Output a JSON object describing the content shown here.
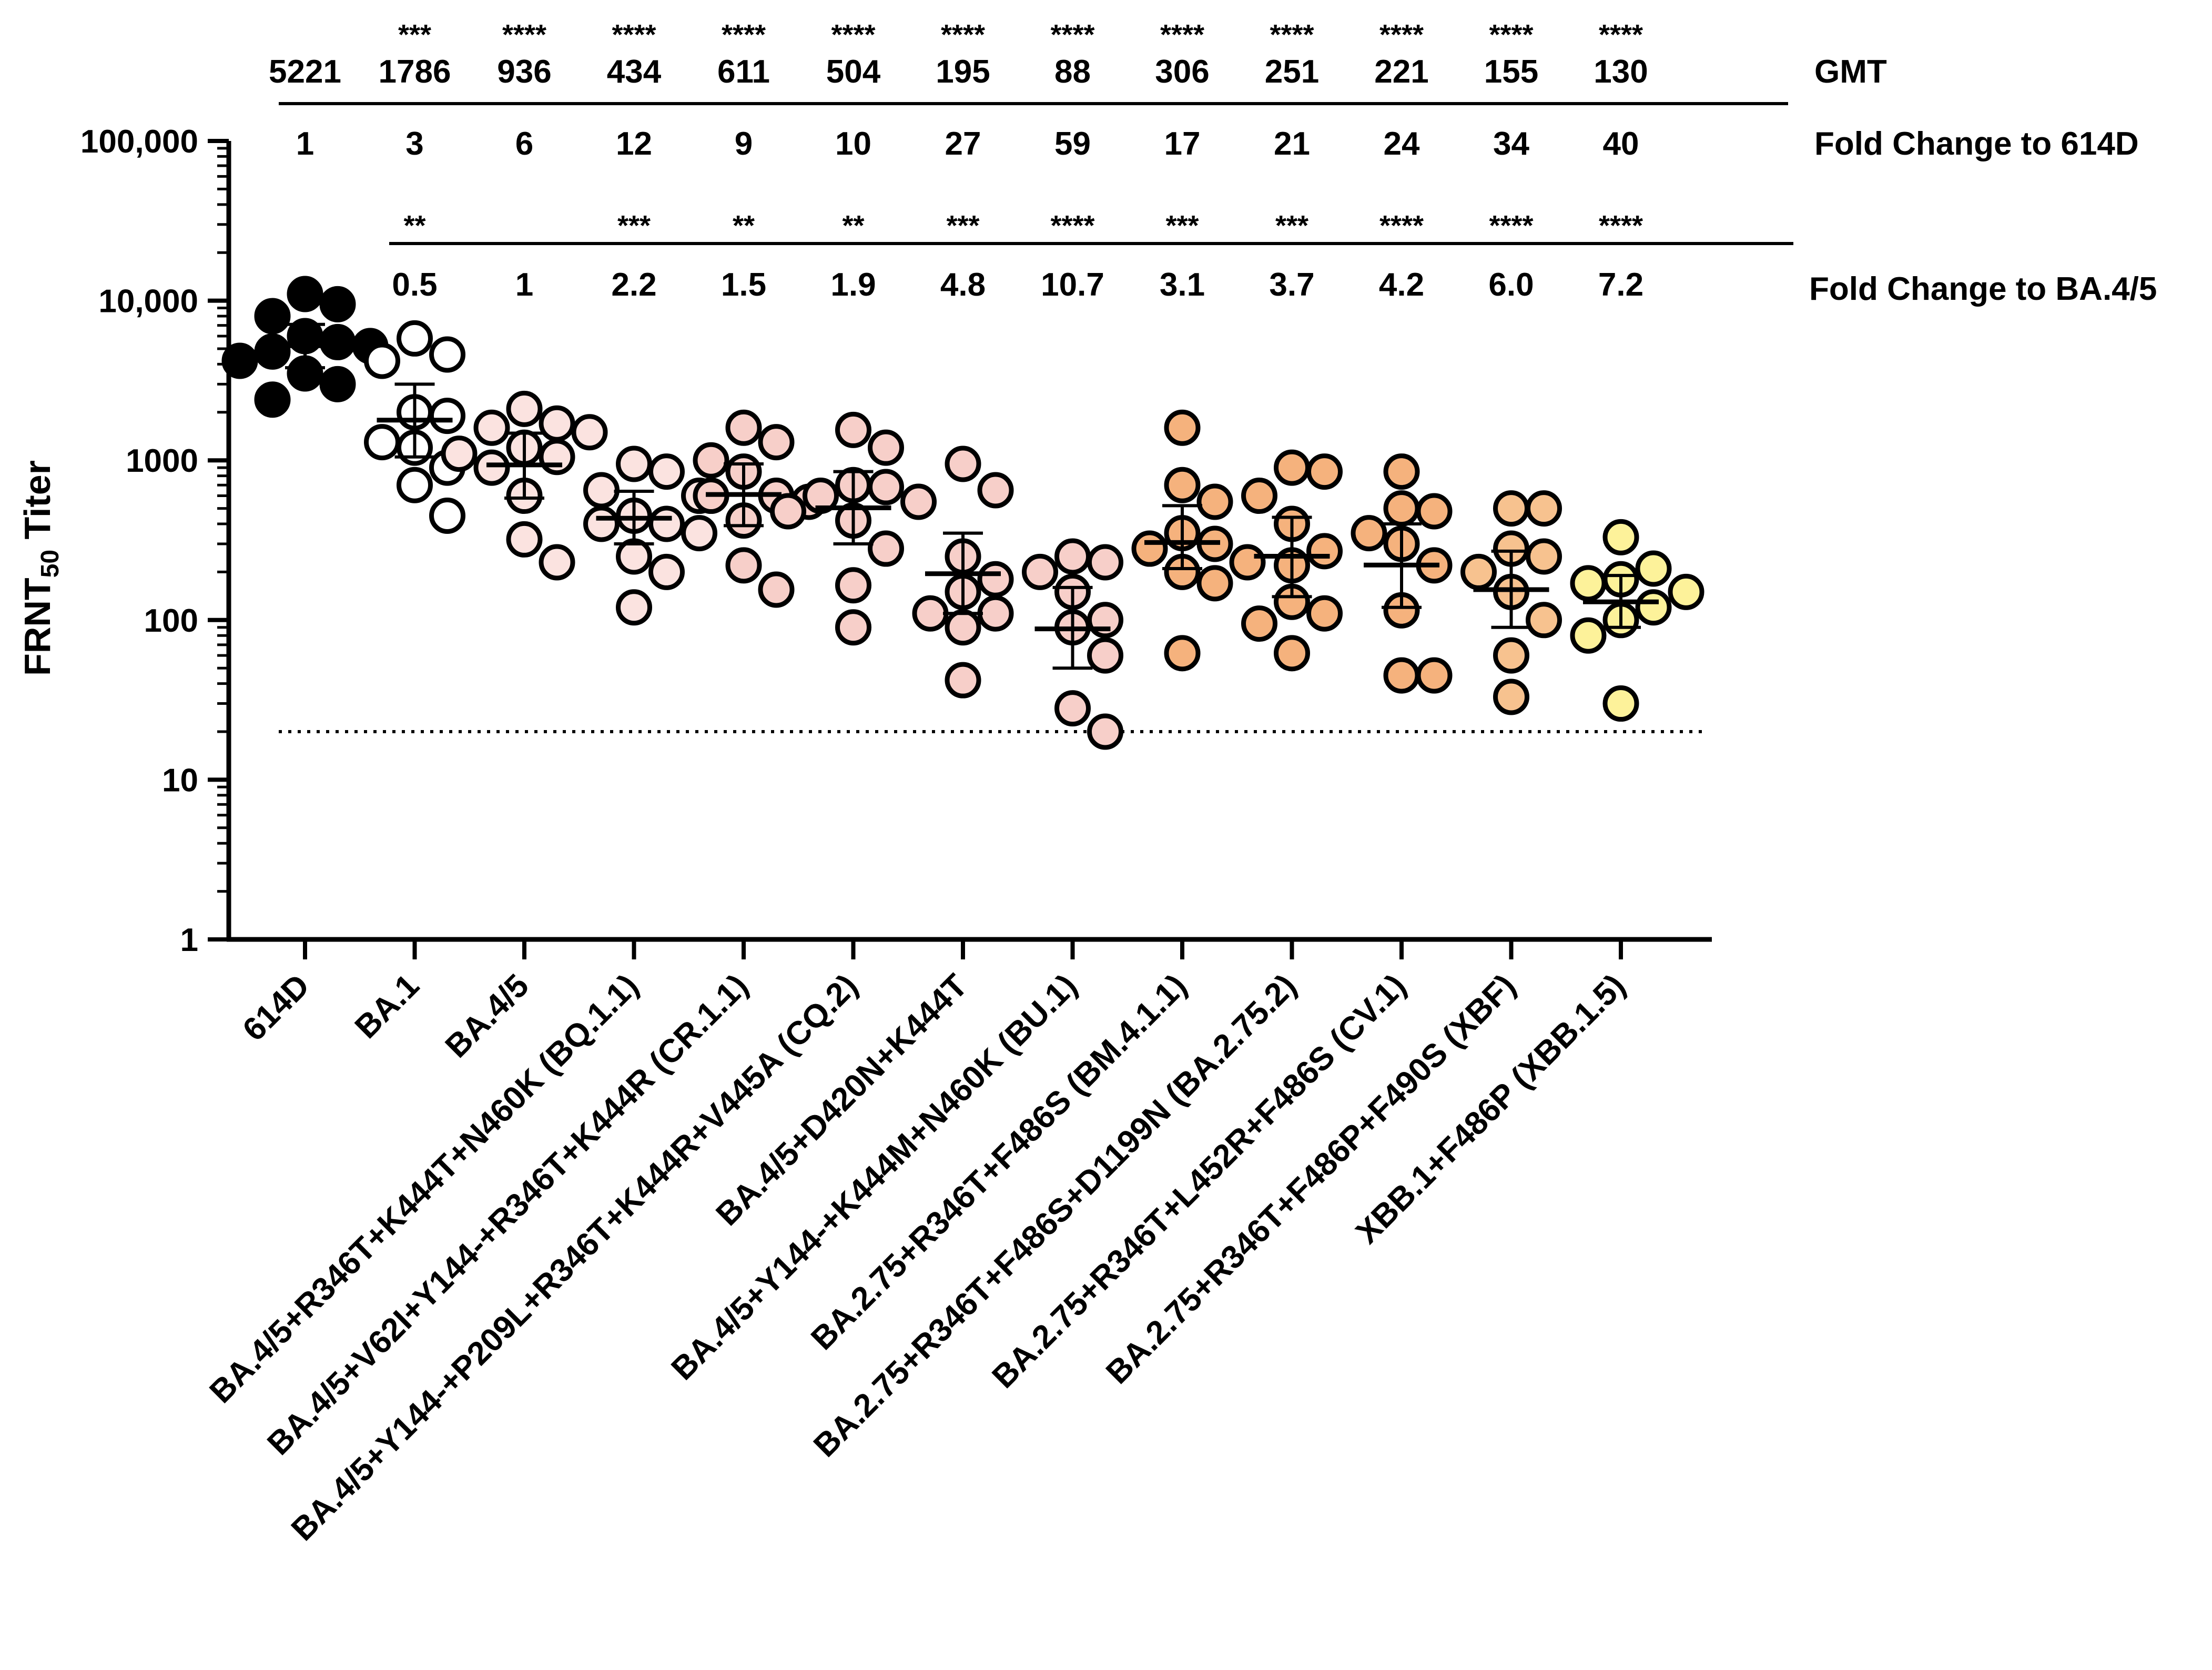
{
  "chart_data": {
    "type": "scatter",
    "scale": "log",
    "ylabel": "FRNT",
    "ylabel_subscript": "50",
    "ylabel_suffix": " Titer",
    "ylim": [
      1,
      100000
    ],
    "yticks": [
      1,
      10,
      100,
      1000,
      10000,
      100000
    ],
    "ytick_labels": [
      "1",
      "10",
      "100",
      "1000",
      "10,000",
      "100,000"
    ],
    "limit_of_detection": 20,
    "categories": [
      "614D",
      "BA.1",
      "BA.4/5",
      "BA.4/5+R346T+K444T+N460K (BQ.1.1)",
      "BA.4/5+V62I+Y144-+R346T+K444R (CR.1.1)",
      "BA.4/5+Y144-+P209L+R346T+K444R+V445A (CQ.2)",
      "BA.4/5+D420N+K444T",
      "BA.4/5+Y144-+K444M+N460K (BU.1)",
      "BA.2.75+R346T+F486S (BM.4.1.1)",
      "BA.2.75+R346T+F486S+D1199N (BA.2.75.2)",
      "BA.2.75+R346T+L452R+F486S (CV.1)",
      "BA.2.75+R346T+F486P+F490S (XBF)",
      "XBB.1+F486P (XBB.1.5)"
    ],
    "colors": [
      "#000000",
      "#ffffff",
      "#fbe3e0",
      "#fbe3e0",
      "#f7cfc9",
      "#f7cfc9",
      "#f7cfc9",
      "#f7cfc9",
      "#f5b27d",
      "#f5b27d",
      "#f5b27d",
      "#f7c28f",
      "#fdf29a"
    ],
    "gmt_label": "GMT",
    "gmt": [
      "5221",
      "1786",
      "936",
      "434",
      "611",
      "504",
      "195",
      "88",
      "306",
      "251",
      "221",
      "155",
      "130"
    ],
    "gmt_significance": [
      "",
      "***",
      "****",
      "****",
      "****",
      "****",
      "****",
      "****",
      "****",
      "****",
      "****",
      "****",
      "****"
    ],
    "fold_614d_label": "Fold Change to 614D",
    "fold_614d": [
      "1",
      "3",
      "6",
      "12",
      "9",
      "10",
      "27",
      "59",
      "17",
      "21",
      "24",
      "34",
      "40"
    ],
    "fold_ba45_label": "Fold Change to BA.4/5",
    "fold_ba45": [
      "",
      "0.5",
      "1",
      "2.2",
      "1.5",
      "1.9",
      "4.8",
      "10.7",
      "3.1",
      "3.7",
      "4.2",
      "6.0",
      "7.2"
    ],
    "fold_ba45_significance": [
      "",
      "**",
      "",
      "***",
      "**",
      "**",
      "***",
      "****",
      "***",
      "***",
      "****",
      "****",
      "****"
    ],
    "gmt_values": [
      5221,
      1786,
      936,
      434,
      611,
      504,
      195,
      88,
      306,
      251,
      221,
      155,
      130
    ],
    "ci_lower": [
      3800,
      1050,
      580,
      300,
      390,
      300,
      110,
      50,
      210,
      140,
      120,
      90,
      90
    ],
    "ci_upper": [
      7100,
      3000,
      1480,
      640,
      950,
      850,
      350,
      160,
      520,
      440,
      400,
      270,
      190
    ],
    "points": [
      [
        11000,
        9500,
        8000,
        6000,
        5500,
        5200,
        4800,
        4200,
        3500,
        3000,
        2400
      ],
      [
        5800,
        4600,
        4200,
        2000,
        1900,
        1300,
        1200,
        900,
        700,
        450
      ],
      [
        2100,
        1700,
        1600,
        1500,
        1200,
        1100,
        1050,
        900,
        600,
        320,
        230
      ],
      [
        950,
        850,
        650,
        600,
        450,
        400,
        400,
        350,
        250,
        200,
        120
      ],
      [
        1600,
        1300,
        1000,
        850,
        600,
        600,
        550,
        420,
        220,
        155
      ],
      [
        1550,
        1200,
        700,
        680,
        600,
        550,
        480,
        420,
        280,
        165,
        90
      ],
      [
        950,
        650,
        250,
        180,
        150,
        110,
        110,
        90,
        42
      ],
      [
        250,
        230,
        200,
        150,
        100,
        90,
        60,
        28,
        20
      ],
      [
        1600,
        700,
        550,
        350,
        300,
        280,
        230,
        200,
        170,
        62
      ],
      [
        900,
        850,
        600,
        400,
        270,
        220,
        130,
        110,
        95,
        62
      ],
      [
        850,
        500,
        480,
        350,
        300,
        220,
        115,
        45,
        45
      ],
      [
        500,
        500,
        280,
        250,
        200,
        150,
        100,
        60,
        33
      ],
      [
        330,
        210,
        180,
        170,
        150,
        120,
        100,
        80,
        30
      ]
    ]
  }
}
